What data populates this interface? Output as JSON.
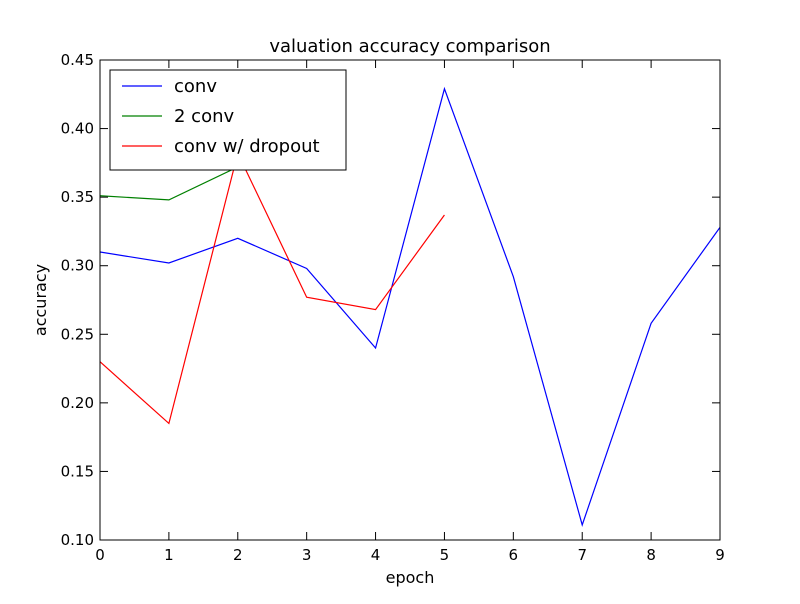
{
  "chart_data": {
    "type": "line",
    "title": "valuation accuracy comparison",
    "xlabel": "epoch",
    "ylabel": "accuracy",
    "xlim": [
      0,
      9
    ],
    "ylim": [
      0.1,
      0.45
    ],
    "x_ticks": [
      0,
      1,
      2,
      3,
      4,
      5,
      6,
      7,
      8,
      9
    ],
    "x_tick_labels": [
      "0",
      "1",
      "2",
      "3",
      "4",
      "5",
      "6",
      "7",
      "8",
      "9"
    ],
    "y_ticks": [
      0.1,
      0.15,
      0.2,
      0.25,
      0.3,
      0.35,
      0.4,
      0.45
    ],
    "y_tick_labels": [
      "0.10",
      "0.15",
      "0.20",
      "0.25",
      "0.30",
      "0.35",
      "0.40",
      "0.45"
    ],
    "grid": false,
    "legend_position": "top-left",
    "series": [
      {
        "name": "conv",
        "color": "#0000ff",
        "x": [
          0,
          1,
          2,
          3,
          4,
          5,
          6,
          7,
          8,
          9
        ],
        "y": [
          0.31,
          0.302,
          0.32,
          0.298,
          0.24,
          0.429,
          0.292,
          0.111,
          0.258,
          0.328
        ]
      },
      {
        "name": "2 conv",
        "color": "#008000",
        "x": [
          0,
          1,
          2,
          3
        ],
        "y": [
          0.351,
          0.348,
          0.372,
          0.376
        ]
      },
      {
        "name": "conv w/ dropout",
        "color": "#ff0000",
        "x": [
          0,
          1,
          2,
          3,
          4,
          5
        ],
        "y": [
          0.23,
          0.185,
          0.382,
          0.277,
          0.268,
          0.337
        ]
      }
    ]
  }
}
